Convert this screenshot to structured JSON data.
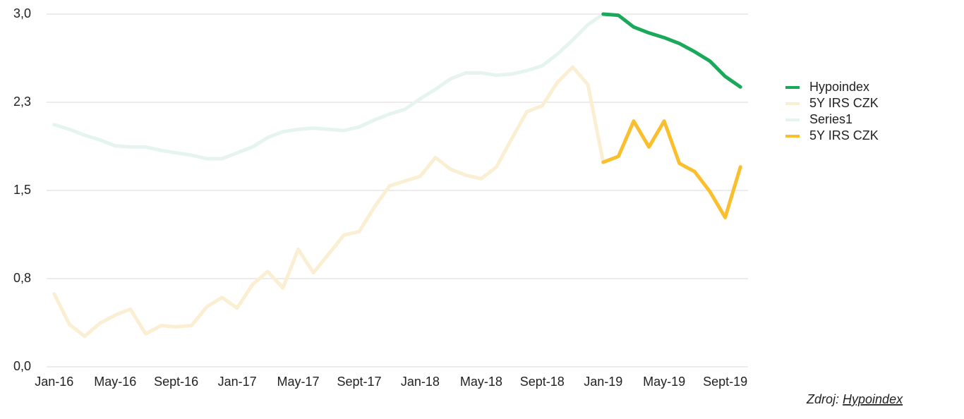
{
  "chart_data": {
    "type": "line",
    "categories": [
      "Jan-16",
      null,
      null,
      null,
      "May-16",
      null,
      null,
      null,
      "Sept-16",
      null,
      null,
      null,
      "Jan-17",
      null,
      null,
      null,
      "May-17",
      null,
      null,
      null,
      "Sept-17",
      null,
      null,
      null,
      "Jan-18",
      null,
      null,
      null,
      "May-18",
      null,
      null,
      null,
      "Sept-18",
      null,
      null,
      null,
      "Jan-19",
      null,
      null,
      null,
      "May-19",
      null,
      null,
      null,
      "Sept-19",
      null
    ],
    "series": [
      {
        "name": "Hypoindex",
        "color": "#1aa85a",
        "values": [
          null,
          null,
          null,
          null,
          null,
          null,
          null,
          null,
          null,
          null,
          null,
          null,
          null,
          null,
          null,
          null,
          null,
          null,
          null,
          null,
          null,
          null,
          null,
          null,
          null,
          null,
          null,
          null,
          null,
          null,
          null,
          null,
          null,
          null,
          null,
          null,
          3.0,
          2.99,
          2.89,
          2.84,
          2.8,
          2.75,
          2.68,
          2.6,
          2.47,
          2.38
        ]
      },
      {
        "name": "5Y IRS CZK",
        "color": "#fbefd3",
        "values": [
          0.62,
          0.36,
          0.26,
          0.37,
          0.44,
          0.49,
          0.28,
          0.35,
          0.34,
          0.35,
          0.51,
          0.59,
          0.5,
          0.7,
          0.81,
          0.67,
          1.0,
          0.8,
          0.96,
          1.12,
          1.15,
          1.36,
          1.54,
          1.58,
          1.62,
          1.78,
          1.68,
          1.63,
          1.6,
          1.7,
          1.94,
          2.17,
          2.22,
          2.42,
          2.55,
          2.4,
          1.74,
          null,
          null,
          null,
          null,
          null,
          null,
          null,
          null,
          null
        ]
      },
      {
        "name": "Series1",
        "color": "#e5f5ee",
        "values": [
          2.06,
          2.02,
          1.97,
          1.93,
          1.88,
          1.87,
          1.87,
          1.84,
          1.82,
          1.8,
          1.77,
          1.77,
          1.82,
          1.87,
          1.95,
          2.0,
          2.02,
          2.03,
          2.02,
          2.01,
          2.04,
          2.1,
          2.15,
          2.19,
          2.28,
          2.36,
          2.45,
          2.5,
          2.5,
          2.48,
          2.49,
          2.52,
          2.56,
          2.66,
          2.78,
          2.91,
          3.0,
          null,
          null,
          null,
          null,
          null,
          null,
          null,
          null,
          null
        ]
      },
      {
        "name": "5Y IRS CZK",
        "color": "#fbbf2d",
        "values": [
          null,
          null,
          null,
          null,
          null,
          null,
          null,
          null,
          null,
          null,
          null,
          null,
          null,
          null,
          null,
          null,
          null,
          null,
          null,
          null,
          null,
          null,
          null,
          null,
          null,
          null,
          null,
          null,
          null,
          null,
          null,
          null,
          null,
          null,
          null,
          null,
          1.74,
          1.79,
          2.09,
          1.87,
          2.09,
          1.73,
          1.66,
          1.49,
          1.27,
          1.7
        ]
      }
    ],
    "draw_order": [
      2,
      1,
      3,
      0
    ],
    "ylim": [
      0,
      3
    ],
    "yticks": [
      {
        "value": 0,
        "label": "0,0"
      },
      {
        "value": 0.75,
        "label": "0,8"
      },
      {
        "value": 1.5,
        "label": "1,5"
      },
      {
        "value": 2.25,
        "label": "2,3"
      },
      {
        "value": 3,
        "label": "3,0"
      }
    ],
    "grid": true,
    "legend": "right",
    "source": {
      "label": "Zdroj:",
      "name": "Hypoindex"
    }
  }
}
